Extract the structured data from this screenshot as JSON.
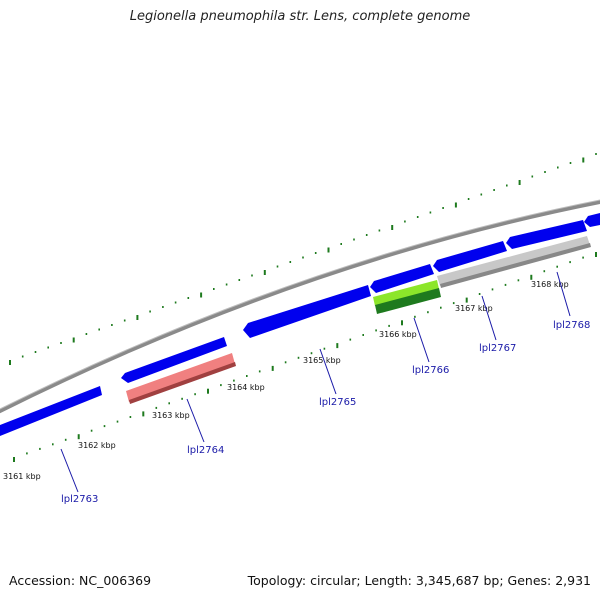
{
  "title": "Legionella pneumophila str. Lens, complete genome",
  "footer": {
    "accession": "Accession: NC_006369",
    "summary": "Topology: circular; Length: 3,345,687 bp; Genes: 2,931"
  },
  "colors": {
    "backbone": "#8a8a8a",
    "cds": "#0000ee",
    "tick": "#1e7a1e",
    "gene_label": "#1a1aa8",
    "callout_line": "#1a1aa8"
  },
  "ticks": [
    "3161 kbp",
    "3162 kbp",
    "3163 kbp",
    "3164 kbp",
    "3165 kbp",
    "3166 kbp",
    "3167 kbp",
    "3168 kbp"
  ],
  "genes": [
    "lpl2763",
    "lpl2764",
    "lpl2765",
    "lpl2766",
    "lpl2767",
    "lpl2768"
  ]
}
